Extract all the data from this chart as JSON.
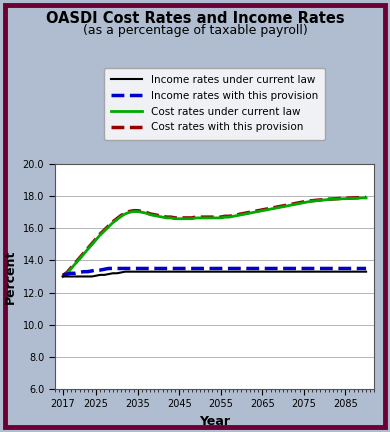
{
  "title_line1": "OASDI Cost Rates and Income Rates",
  "title_line2": "(as a percentage of taxable payroll)",
  "xlabel": "Year",
  "ylabel": "Percent",
  "xlim": [
    2015,
    2092
  ],
  "ylim": [
    6.0,
    20.0
  ],
  "yticks": [
    6.0,
    8.0,
    10.0,
    12.0,
    14.0,
    16.0,
    18.0,
    20.0
  ],
  "xticks": [
    2017,
    2025,
    2035,
    2045,
    2055,
    2065,
    2075,
    2085
  ],
  "background_color": "#b0bdd0",
  "plot_bg_color": "#ffffff",
  "border_color": "#6b0035",
  "years": [
    2017,
    2018,
    2019,
    2020,
    2021,
    2022,
    2023,
    2024,
    2025,
    2026,
    2027,
    2028,
    2029,
    2030,
    2031,
    2032,
    2033,
    2034,
    2035,
    2036,
    2037,
    2038,
    2039,
    2040,
    2041,
    2042,
    2043,
    2044,
    2045,
    2046,
    2047,
    2048,
    2049,
    2050,
    2051,
    2052,
    2053,
    2054,
    2055,
    2056,
    2057,
    2058,
    2059,
    2060,
    2061,
    2062,
    2063,
    2064,
    2065,
    2066,
    2067,
    2068,
    2069,
    2070,
    2071,
    2072,
    2073,
    2074,
    2075,
    2076,
    2077,
    2078,
    2079,
    2080,
    2081,
    2082,
    2083,
    2084,
    2085,
    2086,
    2087,
    2088,
    2089,
    2090
  ],
  "income_current": [
    13.0,
    13.0,
    13.0,
    13.0,
    13.0,
    13.0,
    13.0,
    13.0,
    13.05,
    13.1,
    13.1,
    13.15,
    13.2,
    13.2,
    13.25,
    13.3,
    13.3,
    13.3,
    13.3,
    13.3,
    13.3,
    13.3,
    13.3,
    13.3,
    13.3,
    13.3,
    13.3,
    13.3,
    13.3,
    13.3,
    13.3,
    13.3,
    13.3,
    13.3,
    13.3,
    13.3,
    13.3,
    13.3,
    13.3,
    13.3,
    13.3,
    13.3,
    13.3,
    13.3,
    13.3,
    13.3,
    13.3,
    13.3,
    13.3,
    13.3,
    13.3,
    13.3,
    13.3,
    13.3,
    13.3,
    13.3,
    13.3,
    13.3,
    13.3,
    13.3,
    13.3,
    13.3,
    13.3,
    13.3,
    13.3,
    13.3,
    13.3,
    13.3,
    13.3,
    13.3,
    13.3,
    13.3,
    13.3,
    13.3
  ],
  "income_provision": [
    13.1,
    13.15,
    13.2,
    13.2,
    13.25,
    13.3,
    13.3,
    13.35,
    13.4,
    13.4,
    13.45,
    13.5,
    13.5,
    13.5,
    13.5,
    13.5,
    13.5,
    13.5,
    13.5,
    13.5,
    13.5,
    13.5,
    13.5,
    13.5,
    13.5,
    13.5,
    13.5,
    13.5,
    13.5,
    13.5,
    13.5,
    13.5,
    13.5,
    13.5,
    13.5,
    13.5,
    13.5,
    13.5,
    13.5,
    13.5,
    13.5,
    13.5,
    13.5,
    13.5,
    13.5,
    13.5,
    13.5,
    13.5,
    13.5,
    13.5,
    13.5,
    13.5,
    13.5,
    13.5,
    13.5,
    13.5,
    13.5,
    13.5,
    13.5,
    13.5,
    13.5,
    13.5,
    13.5,
    13.5,
    13.5,
    13.5,
    13.5,
    13.5,
    13.5,
    13.5,
    13.5,
    13.5,
    13.5,
    13.5
  ],
  "cost_current": [
    13.0,
    13.2,
    13.5,
    13.8,
    14.1,
    14.4,
    14.7,
    15.0,
    15.3,
    15.6,
    15.85,
    16.1,
    16.35,
    16.55,
    16.75,
    16.9,
    17.0,
    17.05,
    17.05,
    17.0,
    16.95,
    16.85,
    16.8,
    16.75,
    16.7,
    16.65,
    16.65,
    16.6,
    16.6,
    16.6,
    16.6,
    16.6,
    16.65,
    16.65,
    16.65,
    16.65,
    16.65,
    16.65,
    16.65,
    16.7,
    16.7,
    16.75,
    16.8,
    16.85,
    16.9,
    16.95,
    17.0,
    17.05,
    17.1,
    17.15,
    17.2,
    17.25,
    17.3,
    17.35,
    17.4,
    17.45,
    17.5,
    17.55,
    17.6,
    17.65,
    17.7,
    17.72,
    17.75,
    17.77,
    17.8,
    17.82,
    17.83,
    17.84,
    17.85,
    17.86,
    17.87,
    17.88,
    17.9,
    17.9
  ],
  "cost_provision": [
    13.05,
    13.25,
    13.55,
    13.85,
    14.15,
    14.45,
    14.75,
    15.05,
    15.35,
    15.65,
    15.9,
    16.15,
    16.4,
    16.6,
    16.8,
    16.95,
    17.05,
    17.1,
    17.1,
    17.05,
    17.0,
    16.9,
    16.85,
    16.8,
    16.75,
    16.7,
    16.7,
    16.65,
    16.65,
    16.65,
    16.65,
    16.65,
    16.7,
    16.7,
    16.7,
    16.7,
    16.7,
    16.7,
    16.7,
    16.75,
    16.75,
    16.8,
    16.85,
    16.9,
    16.95,
    17.0,
    17.05,
    17.1,
    17.15,
    17.2,
    17.25,
    17.3,
    17.35,
    17.4,
    17.45,
    17.5,
    17.55,
    17.6,
    17.65,
    17.7,
    17.72,
    17.75,
    17.77,
    17.8,
    17.82,
    17.83,
    17.85,
    17.87,
    17.88,
    17.89,
    17.9,
    17.91,
    17.92,
    17.93
  ],
  "legend_entries": [
    {
      "label": "Income rates under current law",
      "color": "#000000",
      "linestyle": "solid",
      "linewidth": 1.5
    },
    {
      "label": "Income rates with this provision",
      "color": "#0000cc",
      "linestyle": "dashed",
      "linewidth": 2.5
    },
    {
      "label": "Cost rates under current law",
      "color": "#00aa00",
      "linestyle": "solid",
      "linewidth": 2.0
    },
    {
      "label": "Cost rates with this provision",
      "color": "#990000",
      "linestyle": "dashed",
      "linewidth": 2.5
    }
  ]
}
